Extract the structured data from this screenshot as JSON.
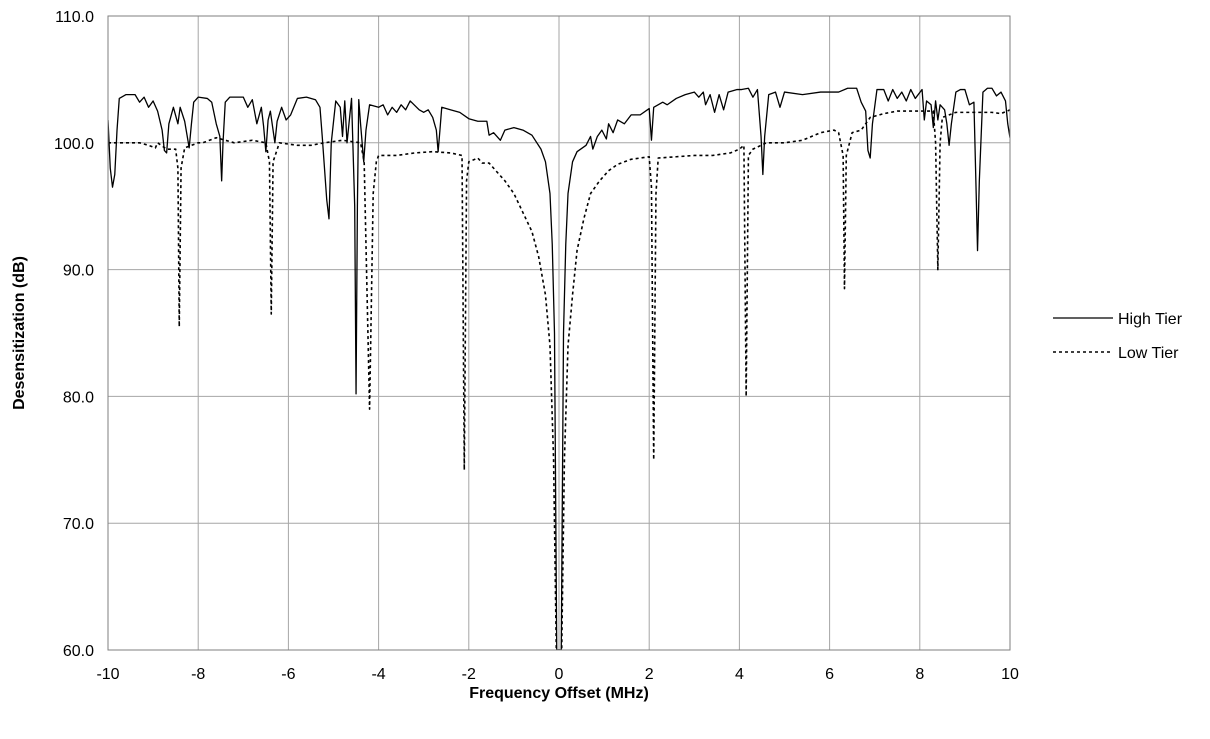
{
  "chart_data": {
    "type": "line",
    "title": "",
    "xlabel": "Frequency Offset (MHz)",
    "ylabel": "Desensitization (dB)",
    "xlim": [
      -10,
      10
    ],
    "ylim": [
      60,
      110
    ],
    "x_ticks": [
      -10,
      -8,
      -6,
      -4,
      -2,
      0,
      2,
      4,
      6,
      8,
      10
    ],
    "x_tick_labels": [
      "-10",
      "-8",
      "-6",
      "-4",
      "-2",
      "0",
      "2",
      "4",
      "6",
      "8",
      "10"
    ],
    "y_ticks": [
      60,
      70,
      80,
      90,
      100,
      110
    ],
    "y_tick_labels": [
      "60.0",
      "70.0",
      "80.0",
      "90.0",
      "100.0",
      "110.0"
    ],
    "grid": true,
    "legend_position": "right",
    "series": [
      {
        "name": "High Tier",
        "style": "solid",
        "color": "#000000",
        "points": [
          [
            -10.0,
            101.8
          ],
          [
            -9.95,
            98.0
          ],
          [
            -9.9,
            96.5
          ],
          [
            -9.85,
            97.5
          ],
          [
            -9.8,
            101.0
          ],
          [
            -9.75,
            103.5
          ],
          [
            -9.6,
            103.8
          ],
          [
            -9.4,
            103.8
          ],
          [
            -9.3,
            103.2
          ],
          [
            -9.2,
            103.6
          ],
          [
            -9.1,
            102.8
          ],
          [
            -9.0,
            103.3
          ],
          [
            -8.9,
            102.5
          ],
          [
            -8.8,
            101.0
          ],
          [
            -8.75,
            99.4
          ],
          [
            -8.7,
            99.2
          ],
          [
            -8.65,
            101.5
          ],
          [
            -8.55,
            102.8
          ],
          [
            -8.45,
            101.5
          ],
          [
            -8.4,
            102.8
          ],
          [
            -8.3,
            101.7
          ],
          [
            -8.2,
            99.6
          ],
          [
            -8.15,
            101.5
          ],
          [
            -8.1,
            103.2
          ],
          [
            -8.0,
            103.6
          ],
          [
            -7.8,
            103.5
          ],
          [
            -7.7,
            103.2
          ],
          [
            -7.6,
            101.5
          ],
          [
            -7.52,
            100.5
          ],
          [
            -7.48,
            97.0
          ],
          [
            -7.45,
            100.0
          ],
          [
            -7.4,
            103.2
          ],
          [
            -7.3,
            103.6
          ],
          [
            -7.0,
            103.6
          ],
          [
            -6.9,
            102.8
          ],
          [
            -6.8,
            103.4
          ],
          [
            -6.7,
            101.5
          ],
          [
            -6.6,
            102.8
          ],
          [
            -6.55,
            101.3
          ],
          [
            -6.5,
            99.3
          ],
          [
            -6.45,
            101.8
          ],
          [
            -6.4,
            102.5
          ],
          [
            -6.3,
            100.0
          ],
          [
            -6.25,
            101.7
          ],
          [
            -6.15,
            102.8
          ],
          [
            -6.05,
            101.8
          ],
          [
            -5.95,
            102.2
          ],
          [
            -5.8,
            103.5
          ],
          [
            -5.6,
            103.6
          ],
          [
            -5.4,
            103.4
          ],
          [
            -5.3,
            102.8
          ],
          [
            -5.25,
            100.5
          ],
          [
            -5.15,
            95.5
          ],
          [
            -5.1,
            94.0
          ],
          [
            -5.05,
            100.0
          ],
          [
            -4.95,
            103.3
          ],
          [
            -4.85,
            102.8
          ],
          [
            -4.8,
            100.5
          ],
          [
            -4.75,
            103.3
          ],
          [
            -4.7,
            100.0
          ],
          [
            -4.6,
            103.5
          ],
          [
            -4.53,
            95.0
          ],
          [
            -4.5,
            80.2
          ],
          [
            -4.47,
            95.0
          ],
          [
            -4.44,
            103.4
          ],
          [
            -4.4,
            101.5
          ],
          [
            -4.33,
            98.5
          ],
          [
            -4.28,
            101.0
          ],
          [
            -4.2,
            103.0
          ],
          [
            -4.0,
            102.8
          ],
          [
            -3.9,
            103.0
          ],
          [
            -3.8,
            102.2
          ],
          [
            -3.7,
            102.8
          ],
          [
            -3.6,
            102.4
          ],
          [
            -3.5,
            103.0
          ],
          [
            -3.4,
            102.6
          ],
          [
            -3.3,
            103.3
          ],
          [
            -3.1,
            102.6
          ],
          [
            -3.0,
            102.4
          ],
          [
            -2.9,
            102.6
          ],
          [
            -2.8,
            102.0
          ],
          [
            -2.72,
            101.0
          ],
          [
            -2.68,
            99.3
          ],
          [
            -2.64,
            101.0
          ],
          [
            -2.6,
            102.8
          ],
          [
            -2.4,
            102.6
          ],
          [
            -2.2,
            102.4
          ],
          [
            -2.0,
            101.9
          ],
          [
            -1.8,
            101.7
          ],
          [
            -1.6,
            101.7
          ],
          [
            -1.55,
            100.6
          ],
          [
            -1.45,
            100.8
          ],
          [
            -1.3,
            100.2
          ],
          [
            -1.2,
            101.0
          ],
          [
            -1.0,
            101.2
          ],
          [
            -0.8,
            101.0
          ],
          [
            -0.6,
            100.6
          ],
          [
            -0.4,
            99.5
          ],
          [
            -0.3,
            98.5
          ],
          [
            -0.2,
            96.0
          ],
          [
            -0.15,
            92.0
          ],
          [
            -0.1,
            85.0
          ],
          [
            -0.08,
            75.0
          ],
          [
            -0.05,
            60.0
          ],
          [
            0.05,
            60.0
          ],
          [
            0.08,
            75.0
          ],
          [
            0.1,
            85.0
          ],
          [
            0.15,
            92.0
          ],
          [
            0.2,
            96.0
          ],
          [
            0.3,
            98.5
          ],
          [
            0.4,
            99.3
          ],
          [
            0.6,
            99.8
          ],
          [
            0.7,
            100.5
          ],
          [
            0.75,
            99.5
          ],
          [
            0.85,
            100.5
          ],
          [
            0.95,
            101.0
          ],
          [
            1.05,
            100.3
          ],
          [
            1.1,
            101.5
          ],
          [
            1.2,
            100.8
          ],
          [
            1.3,
            101.8
          ],
          [
            1.45,
            101.5
          ],
          [
            1.6,
            102.2
          ],
          [
            1.8,
            102.2
          ],
          [
            2.0,
            102.7
          ],
          [
            2.05,
            100.2
          ],
          [
            2.1,
            102.8
          ],
          [
            2.3,
            103.2
          ],
          [
            2.4,
            103.0
          ],
          [
            2.6,
            103.5
          ],
          [
            2.8,
            103.8
          ],
          [
            3.0,
            104.0
          ],
          [
            3.1,
            103.6
          ],
          [
            3.2,
            104.0
          ],
          [
            3.25,
            103.0
          ],
          [
            3.35,
            103.8
          ],
          [
            3.45,
            102.4
          ],
          [
            3.55,
            103.8
          ],
          [
            3.65,
            102.6
          ],
          [
            3.75,
            104.0
          ],
          [
            3.95,
            104.2
          ],
          [
            4.05,
            104.2
          ],
          [
            4.2,
            104.3
          ],
          [
            4.3,
            103.6
          ],
          [
            4.4,
            104.2
          ],
          [
            4.48,
            100.5
          ],
          [
            4.52,
            97.5
          ],
          [
            4.56,
            100.5
          ],
          [
            4.65,
            103.8
          ],
          [
            4.8,
            104.0
          ],
          [
            4.9,
            102.8
          ],
          [
            5.0,
            104.0
          ],
          [
            5.4,
            103.8
          ],
          [
            5.8,
            104.0
          ],
          [
            6.2,
            104.0
          ],
          [
            6.4,
            104.3
          ],
          [
            6.6,
            104.3
          ],
          [
            6.7,
            103.2
          ],
          [
            6.8,
            102.5
          ],
          [
            6.85,
            99.4
          ],
          [
            6.9,
            98.8
          ],
          [
            6.95,
            101.5
          ],
          [
            7.05,
            104.2
          ],
          [
            7.2,
            104.2
          ],
          [
            7.3,
            103.3
          ],
          [
            7.4,
            104.2
          ],
          [
            7.5,
            103.5
          ],
          [
            7.6,
            104.0
          ],
          [
            7.7,
            103.3
          ],
          [
            7.8,
            104.2
          ],
          [
            7.9,
            103.5
          ],
          [
            8.05,
            104.2
          ],
          [
            8.1,
            101.8
          ],
          [
            8.15,
            103.3
          ],
          [
            8.25,
            103.0
          ],
          [
            8.3,
            101.2
          ],
          [
            8.35,
            103.3
          ],
          [
            8.4,
            101.8
          ],
          [
            8.45,
            103.0
          ],
          [
            8.55,
            102.6
          ],
          [
            8.6,
            101.5
          ],
          [
            8.65,
            99.8
          ],
          [
            8.7,
            101.5
          ],
          [
            8.8,
            104.0
          ],
          [
            8.9,
            104.2
          ],
          [
            9.0,
            104.2
          ],
          [
            9.1,
            103.0
          ],
          [
            9.2,
            103.2
          ],
          [
            9.25,
            96.0
          ],
          [
            9.28,
            91.5
          ],
          [
            9.32,
            97.0
          ],
          [
            9.4,
            104.0
          ],
          [
            9.5,
            104.3
          ],
          [
            9.6,
            104.3
          ],
          [
            9.7,
            103.7
          ],
          [
            9.8,
            104.0
          ],
          [
            9.9,
            103.3
          ],
          [
            9.95,
            101.5
          ],
          [
            10.0,
            100.4
          ]
        ]
      },
      {
        "name": "Low Tier",
        "style": "dotted",
        "color": "#000000",
        "points": [
          [
            -10.0,
            100.0
          ],
          [
            -9.6,
            100.0
          ],
          [
            -9.3,
            100.0
          ],
          [
            -9.1,
            99.8
          ],
          [
            -8.95,
            99.6
          ],
          [
            -8.9,
            100.0
          ],
          [
            -8.7,
            99.5
          ],
          [
            -8.6,
            99.5
          ],
          [
            -8.5,
            99.5
          ],
          [
            -8.45,
            98.0
          ],
          [
            -8.42,
            85.5
          ],
          [
            -8.38,
            98.0
          ],
          [
            -8.3,
            99.6
          ],
          [
            -8.0,
            100.0
          ],
          [
            -7.9,
            100.0
          ],
          [
            -7.6,
            100.4
          ],
          [
            -7.2,
            100.0
          ],
          [
            -6.8,
            100.2
          ],
          [
            -6.5,
            100.0
          ],
          [
            -6.42,
            98.5
          ],
          [
            -6.38,
            86.5
          ],
          [
            -6.34,
            98.5
          ],
          [
            -6.2,
            100.0
          ],
          [
            -5.8,
            99.8
          ],
          [
            -5.5,
            99.8
          ],
          [
            -5.2,
            100.0
          ],
          [
            -4.8,
            100.2
          ],
          [
            -4.4,
            100.0
          ],
          [
            -4.32,
            98.5
          ],
          [
            -4.2,
            79.0
          ],
          [
            -4.12,
            96.0
          ],
          [
            -4.05,
            98.5
          ],
          [
            -4.0,
            99.0
          ],
          [
            -3.6,
            99.0
          ],
          [
            -3.2,
            99.2
          ],
          [
            -2.8,
            99.3
          ],
          [
            -2.4,
            99.2
          ],
          [
            -2.15,
            99.0
          ],
          [
            -2.1,
            74.2
          ],
          [
            -2.05,
            97.0
          ],
          [
            -2.0,
            98.5
          ],
          [
            -1.8,
            98.8
          ],
          [
            -1.7,
            98.4
          ],
          [
            -1.55,
            98.4
          ],
          [
            -1.4,
            97.8
          ],
          [
            -1.2,
            97.0
          ],
          [
            -1.0,
            96.0
          ],
          [
            -0.8,
            94.5
          ],
          [
            -0.6,
            93.0
          ],
          [
            -0.45,
            91.0
          ],
          [
            -0.3,
            88.0
          ],
          [
            -0.2,
            84.0
          ],
          [
            -0.12,
            75.0
          ],
          [
            -0.06,
            60.0
          ],
          [
            0.06,
            60.0
          ],
          [
            0.12,
            75.0
          ],
          [
            0.2,
            84.0
          ],
          [
            0.3,
            88.0
          ],
          [
            0.4,
            91.5
          ],
          [
            0.55,
            94.0
          ],
          [
            0.7,
            96.0
          ],
          [
            0.9,
            97.0
          ],
          [
            1.1,
            97.8
          ],
          [
            1.3,
            98.3
          ],
          [
            1.6,
            98.7
          ],
          [
            2.0,
            98.9
          ],
          [
            2.05,
            96.5
          ],
          [
            2.1,
            75.0
          ],
          [
            2.15,
            96.0
          ],
          [
            2.2,
            98.8
          ],
          [
            2.6,
            98.9
          ],
          [
            3.0,
            99.0
          ],
          [
            3.4,
            99.0
          ],
          [
            3.8,
            99.2
          ],
          [
            4.0,
            99.5
          ],
          [
            4.1,
            99.8
          ],
          [
            4.15,
            80.0
          ],
          [
            4.2,
            99.0
          ],
          [
            4.3,
            99.5
          ],
          [
            4.6,
            100.0
          ],
          [
            5.0,
            100.0
          ],
          [
            5.4,
            100.2
          ],
          [
            5.8,
            100.8
          ],
          [
            6.1,
            101.0
          ],
          [
            6.2,
            100.8
          ],
          [
            6.3,
            99.0
          ],
          [
            6.33,
            88.5
          ],
          [
            6.37,
            99.0
          ],
          [
            6.5,
            100.8
          ],
          [
            6.7,
            101.0
          ],
          [
            6.9,
            102.0
          ],
          [
            7.2,
            102.3
          ],
          [
            7.5,
            102.5
          ],
          [
            7.9,
            102.5
          ],
          [
            8.3,
            102.5
          ],
          [
            8.35,
            100.0
          ],
          [
            8.4,
            90.0
          ],
          [
            8.45,
            100.0
          ],
          [
            8.5,
            102.0
          ],
          [
            8.8,
            102.4
          ],
          [
            9.2,
            102.4
          ],
          [
            9.6,
            102.4
          ],
          [
            9.8,
            102.3
          ],
          [
            10.0,
            102.6
          ]
        ]
      }
    ]
  }
}
